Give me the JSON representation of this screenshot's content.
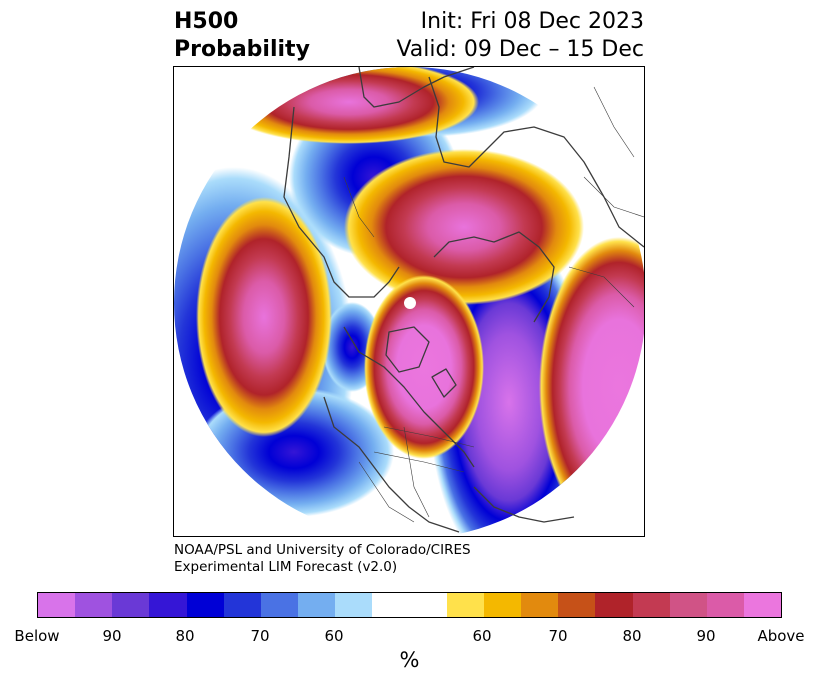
{
  "title": {
    "left_line1": "H500",
    "left_line2": "Probability",
    "right_line1": "Init: Fri 08 Dec 2023",
    "right_line2": "Valid: 09 Dec – 15 Dec"
  },
  "credit": {
    "line1": "NOAA/PSL and University of Colorado/CIRES",
    "line2": "Experimental LIM Forecast (v2.0)"
  },
  "colorbar": {
    "colors": [
      "#d873ea",
      "#9f52e0",
      "#6a39d6",
      "#3516d6",
      "#0000d6",
      "#2335d8",
      "#4a72e4",
      "#74aef0",
      "#aadcfb",
      "#ffffff",
      "#ffffff",
      "#ffe14b",
      "#f4b800",
      "#e28a0e",
      "#c65118",
      "#b0232a",
      "#c33a52",
      "#d05386",
      "#db5ba8",
      "#eb76de"
    ],
    "tick_labels": [
      "Below",
      "90",
      "80",
      "70",
      "60",
      "60",
      "70",
      "80",
      "90",
      "Above"
    ],
    "unit": "%"
  },
  "palette": {
    "above_core": "#e873dc",
    "above_mid": "#c33a52",
    "above_edge": "#f4b800",
    "below_core": "#0000d6",
    "below_mid": "#4a72e4",
    "below_edge": "#aadcfb"
  }
}
